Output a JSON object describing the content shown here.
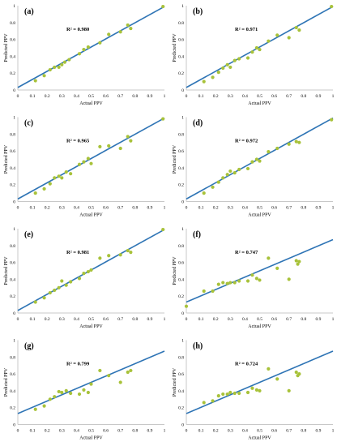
{
  "colors": {
    "axis": "#c8c8c8",
    "fit_line": "#2e74b5",
    "point": "#a8c23a",
    "text": "#000000"
  },
  "chart_data": [
    {
      "panel": "(a)",
      "type": "scatter",
      "r2_label": "R² = 0.980",
      "xlabel": "Actual PPV",
      "ylabel": "Predicted PPV",
      "xlim": [
        0,
        1
      ],
      "ylim": [
        0,
        1
      ],
      "xticks": [
        "0",
        "0.1",
        "0.2",
        "0.3",
        "0.4",
        "0.5",
        "0.6",
        "0.7",
        "0.8",
        "0.9",
        "1"
      ],
      "yticks": [
        "0",
        "0.2",
        "0.4",
        "0.6",
        "0.8",
        "1"
      ],
      "fit": {
        "slope": 0.96,
        "intercept": 0.03
      },
      "points": [
        [
          0.12,
          0.11
        ],
        [
          0.18,
          0.17
        ],
        [
          0.22,
          0.24
        ],
        [
          0.25,
          0.27
        ],
        [
          0.28,
          0.27
        ],
        [
          0.3,
          0.3
        ],
        [
          0.32,
          0.33
        ],
        [
          0.35,
          0.36
        ],
        [
          0.42,
          0.43
        ],
        [
          0.45,
          0.48
        ],
        [
          0.48,
          0.51
        ],
        [
          0.56,
          0.56
        ],
        [
          0.62,
          0.66
        ],
        [
          0.7,
          0.69
        ],
        [
          0.75,
          0.77
        ],
        [
          0.77,
          0.73
        ],
        [
          0.99,
          0.99
        ]
      ]
    },
    {
      "panel": "(b)",
      "type": "scatter",
      "r2_label": "R² = 0.971",
      "xlabel": "Actual PPV",
      "ylabel": "Predicted PPV",
      "xlim": [
        0,
        1
      ],
      "ylim": [
        0,
        1
      ],
      "xticks": [
        "0",
        "0.1",
        "0.2",
        "0.3",
        "0.4",
        "0.5",
        "0.6",
        "0.7",
        "0.8",
        "0.9",
        "1"
      ],
      "yticks": [
        "0",
        "0.2",
        "0.4",
        "0.6",
        "0.8",
        "1"
      ],
      "fit": {
        "slope": 0.96,
        "intercept": 0.03
      },
      "points": [
        [
          0.12,
          0.1
        ],
        [
          0.18,
          0.15
        ],
        [
          0.22,
          0.21
        ],
        [
          0.25,
          0.26
        ],
        [
          0.28,
          0.3
        ],
        [
          0.3,
          0.27
        ],
        [
          0.33,
          0.35
        ],
        [
          0.36,
          0.37
        ],
        [
          0.42,
          0.38
        ],
        [
          0.45,
          0.45
        ],
        [
          0.48,
          0.5
        ],
        [
          0.5,
          0.48
        ],
        [
          0.56,
          0.58
        ],
        [
          0.62,
          0.65
        ],
        [
          0.7,
          0.62
        ],
        [
          0.75,
          0.74
        ],
        [
          0.77,
          0.71
        ],
        [
          0.99,
          0.99
        ]
      ]
    },
    {
      "panel": "(c)",
      "type": "scatter",
      "r2_label": "R² = 0.965",
      "xlabel": "Actual PPV",
      "ylabel": "Predicted PPV",
      "xlim": [
        0,
        1
      ],
      "ylim": [
        0,
        1
      ],
      "xticks": [
        "0",
        "0.1",
        "0.2",
        "0.3",
        "0.4",
        "0.5",
        "0.6",
        "0.7",
        "0.8",
        "0.9",
        "1"
      ],
      "yticks": [
        "0",
        "0.2",
        "0.4",
        "0.6",
        "0.8",
        "1"
      ],
      "fit": {
        "slope": 0.96,
        "intercept": 0.03
      },
      "points": [
        [
          0.12,
          0.1
        ],
        [
          0.18,
          0.15
        ],
        [
          0.22,
          0.21
        ],
        [
          0.25,
          0.28
        ],
        [
          0.28,
          0.3
        ],
        [
          0.3,
          0.28
        ],
        [
          0.33,
          0.35
        ],
        [
          0.36,
          0.33
        ],
        [
          0.42,
          0.44
        ],
        [
          0.45,
          0.47
        ],
        [
          0.48,
          0.51
        ],
        [
          0.5,
          0.45
        ],
        [
          0.56,
          0.65
        ],
        [
          0.62,
          0.66
        ],
        [
          0.7,
          0.63
        ],
        [
          0.75,
          0.77
        ],
        [
          0.77,
          0.72
        ],
        [
          0.99,
          0.98
        ]
      ]
    },
    {
      "panel": "(d)",
      "type": "scatter",
      "r2_label": "R² = 0.972",
      "xlabel": "Actual PPV",
      "ylabel": "Predicted PPV",
      "xlim": [
        0,
        1
      ],
      "ylim": [
        0,
        1
      ],
      "xticks": [
        "0",
        "0.1",
        "0.2",
        "0.3",
        "0.4",
        "0.5",
        "0.6",
        "0.7",
        "0.8",
        "0.9",
        "1"
      ],
      "yticks": [
        "0",
        "0.2",
        "0.4",
        "0.6",
        "0.8",
        "1"
      ],
      "fit": {
        "slope": 0.96,
        "intercept": 0.03
      },
      "points": [
        [
          0.12,
          0.1
        ],
        [
          0.18,
          0.17
        ],
        [
          0.22,
          0.23
        ],
        [
          0.25,
          0.28
        ],
        [
          0.28,
          0.32
        ],
        [
          0.3,
          0.36
        ],
        [
          0.33,
          0.34
        ],
        [
          0.36,
          0.38
        ],
        [
          0.42,
          0.39
        ],
        [
          0.45,
          0.47
        ],
        [
          0.48,
          0.5
        ],
        [
          0.5,
          0.48
        ],
        [
          0.56,
          0.59
        ],
        [
          0.62,
          0.63
        ],
        [
          0.7,
          0.68
        ],
        [
          0.75,
          0.71
        ],
        [
          0.77,
          0.7
        ],
        [
          0.99,
          0.97
        ]
      ]
    },
    {
      "panel": "(e)",
      "type": "scatter",
      "r2_label": "R² = 0.981",
      "xlabel": "Actual PPV",
      "ylabel": "Predicted PPV",
      "xlim": [
        0,
        1
      ],
      "ylim": [
        0,
        1
      ],
      "xticks": [
        "0",
        "0.1",
        "0.2",
        "0.3",
        "0.4",
        "0.5",
        "0.6",
        "0.7",
        "0.8",
        "0.9",
        "1"
      ],
      "yticks": [
        "0",
        "0.2",
        "0.4",
        "0.6",
        "0.8",
        "1"
      ],
      "fit": {
        "slope": 0.96,
        "intercept": 0.03
      },
      "points": [
        [
          0.12,
          0.13
        ],
        [
          0.18,
          0.18
        ],
        [
          0.22,
          0.24
        ],
        [
          0.25,
          0.27
        ],
        [
          0.28,
          0.3
        ],
        [
          0.3,
          0.38
        ],
        [
          0.33,
          0.33
        ],
        [
          0.36,
          0.37
        ],
        [
          0.42,
          0.41
        ],
        [
          0.45,
          0.47
        ],
        [
          0.48,
          0.49
        ],
        [
          0.5,
          0.51
        ],
        [
          0.56,
          0.65
        ],
        [
          0.62,
          0.68
        ],
        [
          0.7,
          0.69
        ],
        [
          0.75,
          0.74
        ],
        [
          0.77,
          0.72
        ],
        [
          0.99,
          0.99
        ]
      ]
    },
    {
      "panel": "(f)",
      "type": "scatter",
      "r2_label": "R² = 0.747",
      "xlabel": "Actual PPV",
      "ylabel": "Predicted PPV",
      "xlim": [
        0,
        1
      ],
      "ylim": [
        0,
        1
      ],
      "xticks": [
        "0",
        "0.1",
        "0.2",
        "0.3",
        "0.4",
        "0.5",
        "0.6",
        "0.7",
        "0.8",
        "0.9",
        "1"
      ],
      "yticks": [
        "0",
        "0.2",
        "0.4",
        "0.6",
        "0.8",
        "1"
      ],
      "fit": {
        "slope": 0.74,
        "intercept": 0.13
      },
      "points": [
        [
          0.0,
          0.08
        ],
        [
          0.12,
          0.26
        ],
        [
          0.18,
          0.26
        ],
        [
          0.22,
          0.34
        ],
        [
          0.25,
          0.36
        ],
        [
          0.28,
          0.35
        ],
        [
          0.3,
          0.36
        ],
        [
          0.33,
          0.36
        ],
        [
          0.36,
          0.38
        ],
        [
          0.42,
          0.38
        ],
        [
          0.45,
          0.45
        ],
        [
          0.48,
          0.41
        ],
        [
          0.5,
          0.39
        ],
        [
          0.56,
          0.65
        ],
        [
          0.62,
          0.53
        ],
        [
          0.7,
          0.4
        ],
        [
          0.75,
          0.62
        ],
        [
          0.76,
          0.58
        ],
        [
          0.77,
          0.61
        ]
      ]
    },
    {
      "panel": "(g)",
      "type": "scatter",
      "r2_label": "R² = 0.799",
      "xlabel": "Actual PPV",
      "ylabel": "Predicted PPV",
      "xlim": [
        0,
        1
      ],
      "ylim": [
        0,
        1
      ],
      "xticks": [
        "0",
        "0.1",
        "0.2",
        "0.3",
        "0.4",
        "0.5",
        "0.6",
        "0.7",
        "0.8",
        "0.9",
        "1"
      ],
      "yticks": [
        "0",
        "0.2",
        "0.4",
        "0.6",
        "0.8",
        "1"
      ],
      "fit": {
        "slope": 0.74,
        "intercept": 0.13
      },
      "points": [
        [
          0.12,
          0.18
        ],
        [
          0.18,
          0.22
        ],
        [
          0.22,
          0.3
        ],
        [
          0.25,
          0.33
        ],
        [
          0.28,
          0.39
        ],
        [
          0.3,
          0.38
        ],
        [
          0.33,
          0.4
        ],
        [
          0.36,
          0.37
        ],
        [
          0.42,
          0.36
        ],
        [
          0.45,
          0.41
        ],
        [
          0.48,
          0.38
        ],
        [
          0.5,
          0.48
        ],
        [
          0.56,
          0.64
        ],
        [
          0.62,
          0.58
        ],
        [
          0.7,
          0.5
        ],
        [
          0.75,
          0.62
        ],
        [
          0.77,
          0.64
        ]
      ]
    },
    {
      "panel": "(h)",
      "type": "scatter",
      "r2_label": "R² = 0.724",
      "xlabel": "Actual PPV",
      "ylabel": "Predicted PPV",
      "xlim": [
        0,
        1
      ],
      "ylim": [
        0,
        1
      ],
      "xticks": [
        "0",
        "0.1",
        "0.2",
        "0.3",
        "0.4",
        "0.5",
        "0.6",
        "0.7",
        "0.8",
        "0.9",
        "1"
      ],
      "yticks": [
        "0",
        "0.2",
        "0.4",
        "0.6",
        "0.8",
        "1"
      ],
      "fit": {
        "slope": 0.74,
        "intercept": 0.13
      },
      "points": [
        [
          0.12,
          0.26
        ],
        [
          0.18,
          0.28
        ],
        [
          0.22,
          0.34
        ],
        [
          0.25,
          0.36
        ],
        [
          0.28,
          0.36
        ],
        [
          0.3,
          0.38
        ],
        [
          0.33,
          0.37
        ],
        [
          0.36,
          0.37
        ],
        [
          0.42,
          0.38
        ],
        [
          0.45,
          0.43
        ],
        [
          0.48,
          0.41
        ],
        [
          0.5,
          0.4
        ],
        [
          0.56,
          0.66
        ],
        [
          0.62,
          0.54
        ],
        [
          0.7,
          0.4
        ],
        [
          0.75,
          0.62
        ],
        [
          0.76,
          0.58
        ],
        [
          0.77,
          0.6
        ]
      ]
    }
  ]
}
